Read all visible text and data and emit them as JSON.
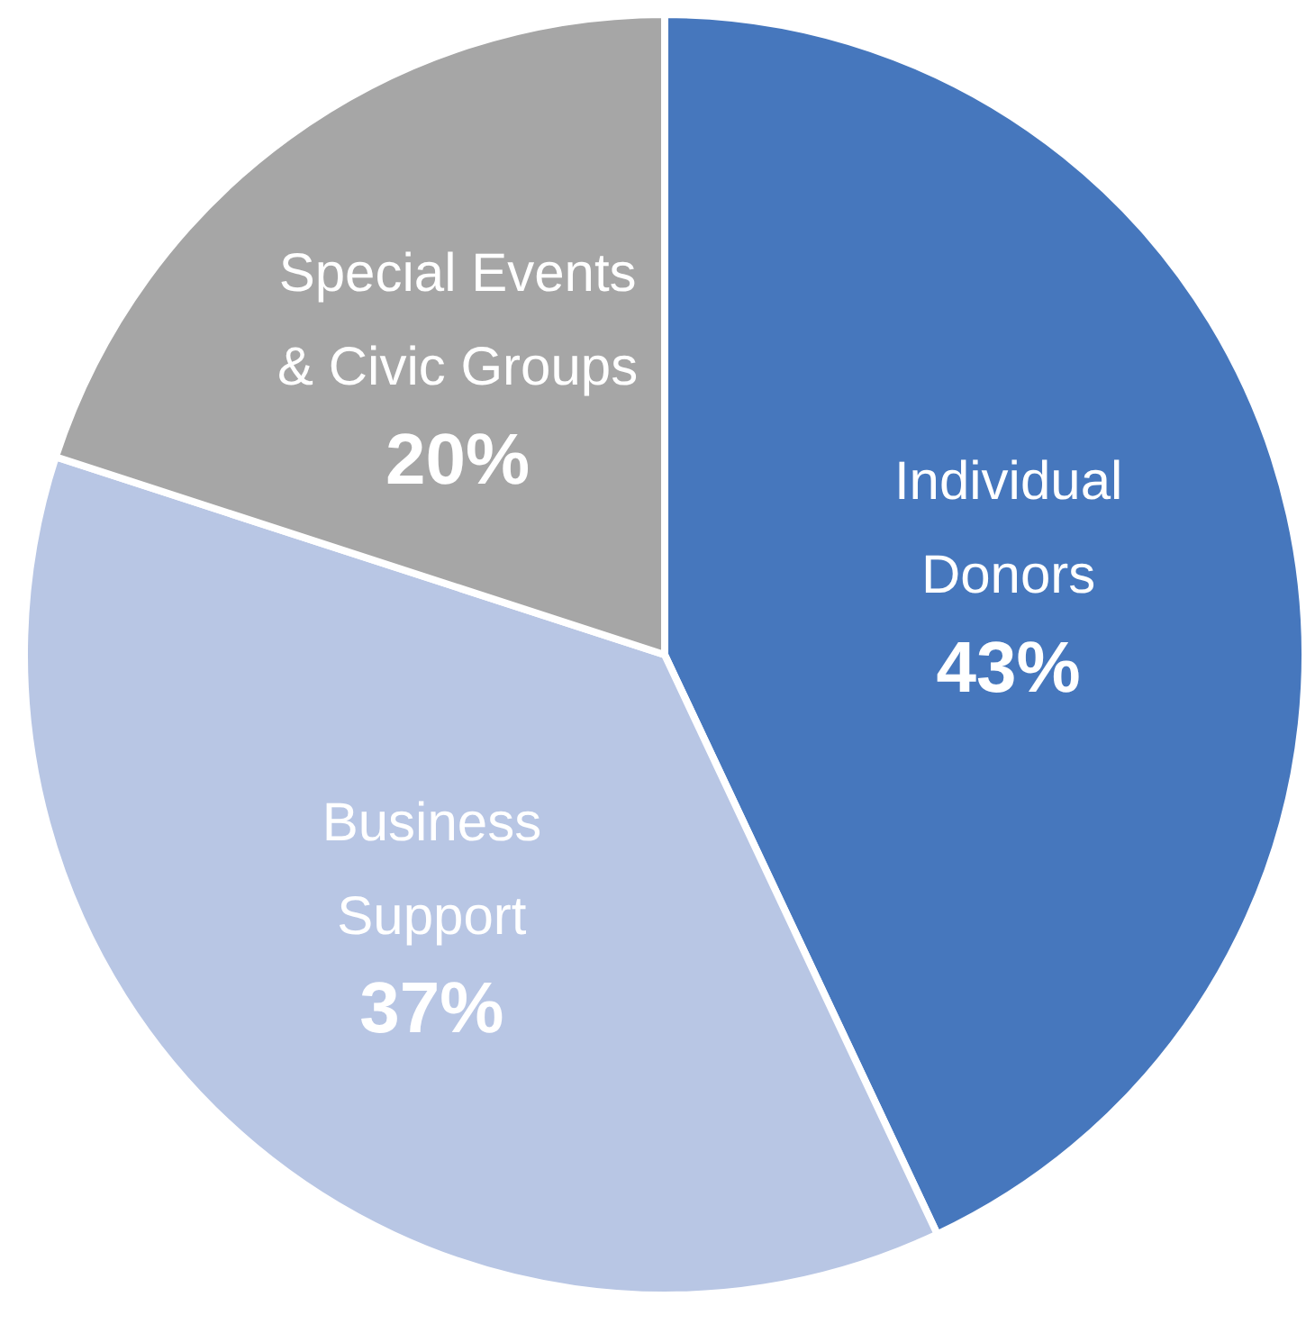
{
  "chart_data": {
    "type": "pie",
    "categories": [
      "Individual Donors",
      "Business Support",
      "Special Events & Civic Groups"
    ],
    "values": [
      43,
      37,
      20
    ],
    "colors": [
      "#4677bd",
      "#b8c6e4",
      "#a6a6a6"
    ],
    "value_labels": [
      "43%",
      "37%",
      "20%"
    ],
    "legend": false
  }
}
